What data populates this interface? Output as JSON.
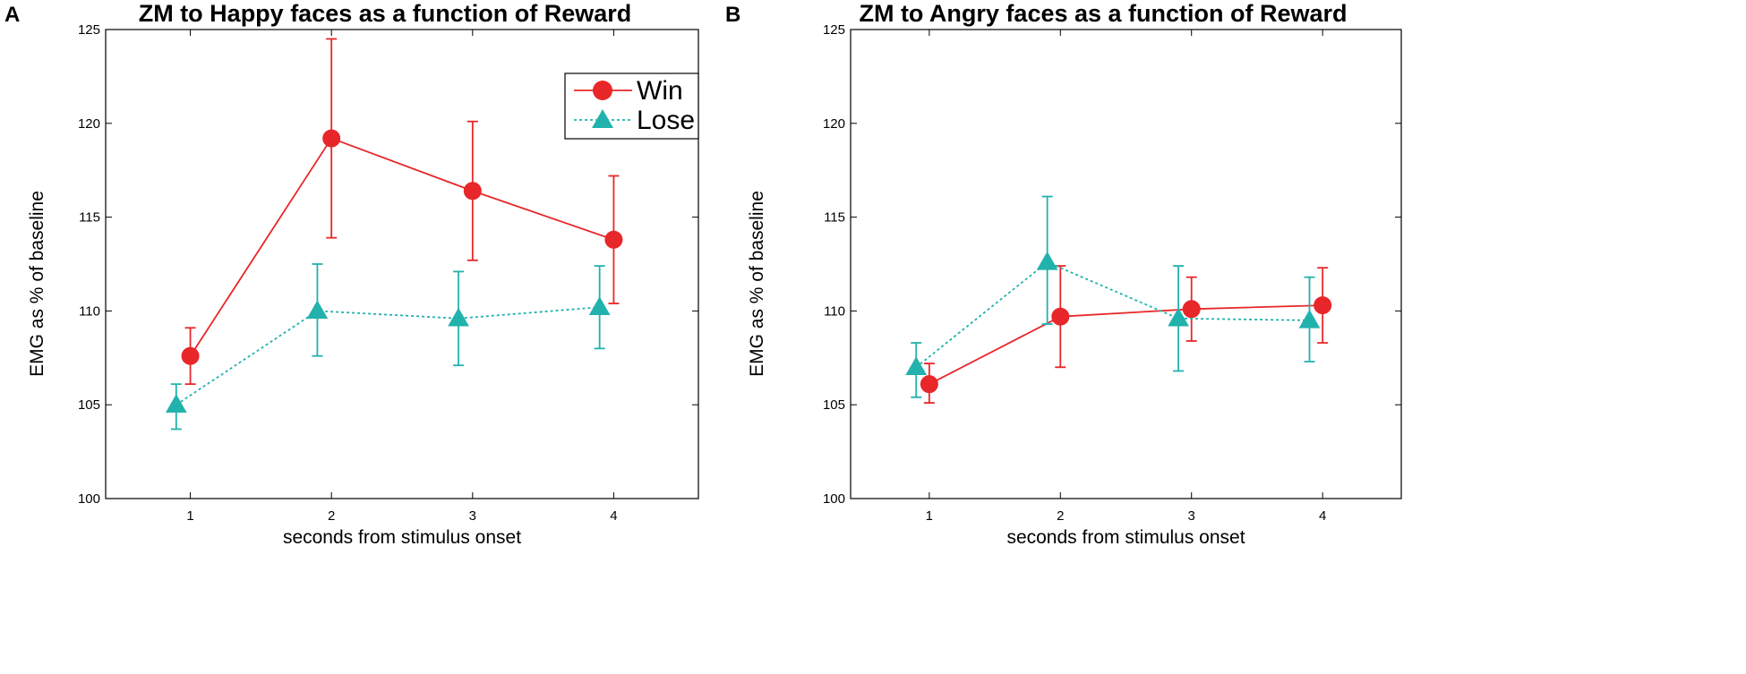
{
  "chart_data": [
    {
      "panel": "A",
      "type": "line",
      "title": "ZM to Happy faces as a function of Reward",
      "xlabel": "seconds from stimulus onset",
      "ylabel": "EMG as % of baseline",
      "xlim": [
        0.4,
        4.6
      ],
      "ylim": [
        100,
        125
      ],
      "xticks": [
        1,
        2,
        3,
        4
      ],
      "yticks": [
        100,
        105,
        110,
        115,
        120,
        125
      ],
      "legend": {
        "position": "top-right",
        "entries": [
          "Win",
          "Lose"
        ]
      },
      "series": [
        {
          "name": "Win",
          "color": "#e8272a",
          "marker": "circle",
          "line": "solid",
          "x": [
            1,
            2,
            3,
            4
          ],
          "y": [
            107.6,
            119.2,
            116.4,
            113.8
          ],
          "err_low": [
            106.1,
            113.9,
            112.7,
            110.4
          ],
          "err_high": [
            109.1,
            124.5,
            120.1,
            117.2
          ]
        },
        {
          "name": "Lose",
          "color": "#22b2ad",
          "marker": "triangle",
          "line": "dotted",
          "x": [
            0.9,
            1.9,
            2.9,
            3.9
          ],
          "y": [
            105.0,
            110.0,
            109.6,
            110.2
          ],
          "err_low": [
            103.7,
            107.6,
            107.1,
            108.0
          ],
          "err_high": [
            106.1,
            112.5,
            112.1,
            112.4
          ]
        }
      ]
    },
    {
      "panel": "B",
      "type": "line",
      "title": "ZM to Angry faces as a function of Reward",
      "xlabel": "seconds from stimulus onset",
      "ylabel": "EMG as % of baseline",
      "xlim": [
        0.4,
        4.6
      ],
      "ylim": [
        100,
        125
      ],
      "xticks": [
        1,
        2,
        3,
        4
      ],
      "yticks": [
        100,
        105,
        110,
        115,
        120,
        125
      ],
      "series": [
        {
          "name": "Win",
          "color": "#e8272a",
          "marker": "circle",
          "line": "solid",
          "x": [
            1,
            2,
            3,
            4
          ],
          "y": [
            106.1,
            109.7,
            110.1,
            110.3
          ],
          "err_low": [
            105.1,
            107.0,
            108.4,
            108.3
          ],
          "err_high": [
            107.2,
            112.4,
            111.8,
            112.3
          ]
        },
        {
          "name": "Lose",
          "color": "#22b2ad",
          "marker": "triangle",
          "line": "dotted",
          "x": [
            0.9,
            1.9,
            2.9,
            3.9
          ],
          "y": [
            107.0,
            112.6,
            109.6,
            109.5
          ],
          "err_low": [
            105.4,
            109.3,
            106.8,
            107.3
          ],
          "err_high": [
            108.3,
            116.1,
            112.4,
            111.8
          ]
        }
      ]
    }
  ]
}
